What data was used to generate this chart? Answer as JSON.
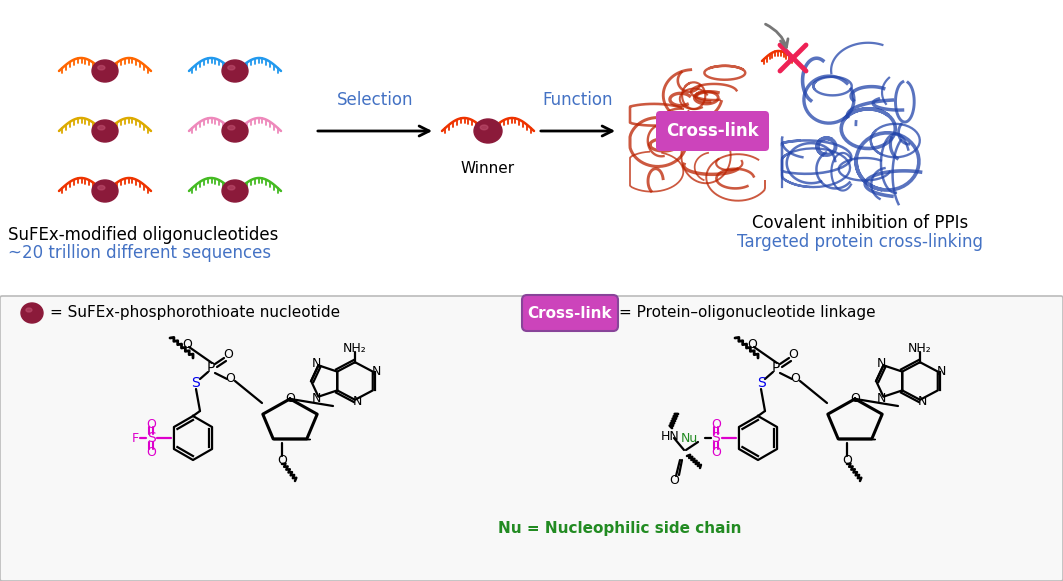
{
  "title": "",
  "top_section": {
    "label1": "SuFEx-modified oligonucleotides",
    "label2": "~20 trillion different sequences",
    "label2_color": "#4472C4",
    "winner_label": "Winner",
    "selection_label": "Selection",
    "selection_color": "#4472C4",
    "function_label": "Function",
    "function_color": "#4472C4",
    "right_label1": "Covalent inhibition of PPIs",
    "right_label2": "Targeted protein cross-linking",
    "right_label2_color": "#4472C4",
    "crosslink_label": "Cross-link",
    "crosslink_bg": "#CC44BB",
    "bead_color": "#8B1A3A",
    "strand_colors": [
      "#FF6600",
      "#00AAEE",
      "#FFB300",
      "#FF88CC",
      "#FF3300",
      "#44CC00"
    ]
  },
  "bottom_section": {
    "bead_label": "= SuFEx-phosphorothioate nucleotide",
    "crosslink_label2": "Cross-link",
    "crosslink_bg2": "#CC44BB",
    "linkage_label": "= Protein–oligonucleotide linkage",
    "nu_label": "Nu = Nucleophilic side chain",
    "nu_color": "#228B22",
    "s_color": "#0000EE",
    "magenta": "#DD00CC",
    "green": "#228B22"
  },
  "bg_color": "#FFFFFF",
  "bottom_bg": "#F8F8F8"
}
